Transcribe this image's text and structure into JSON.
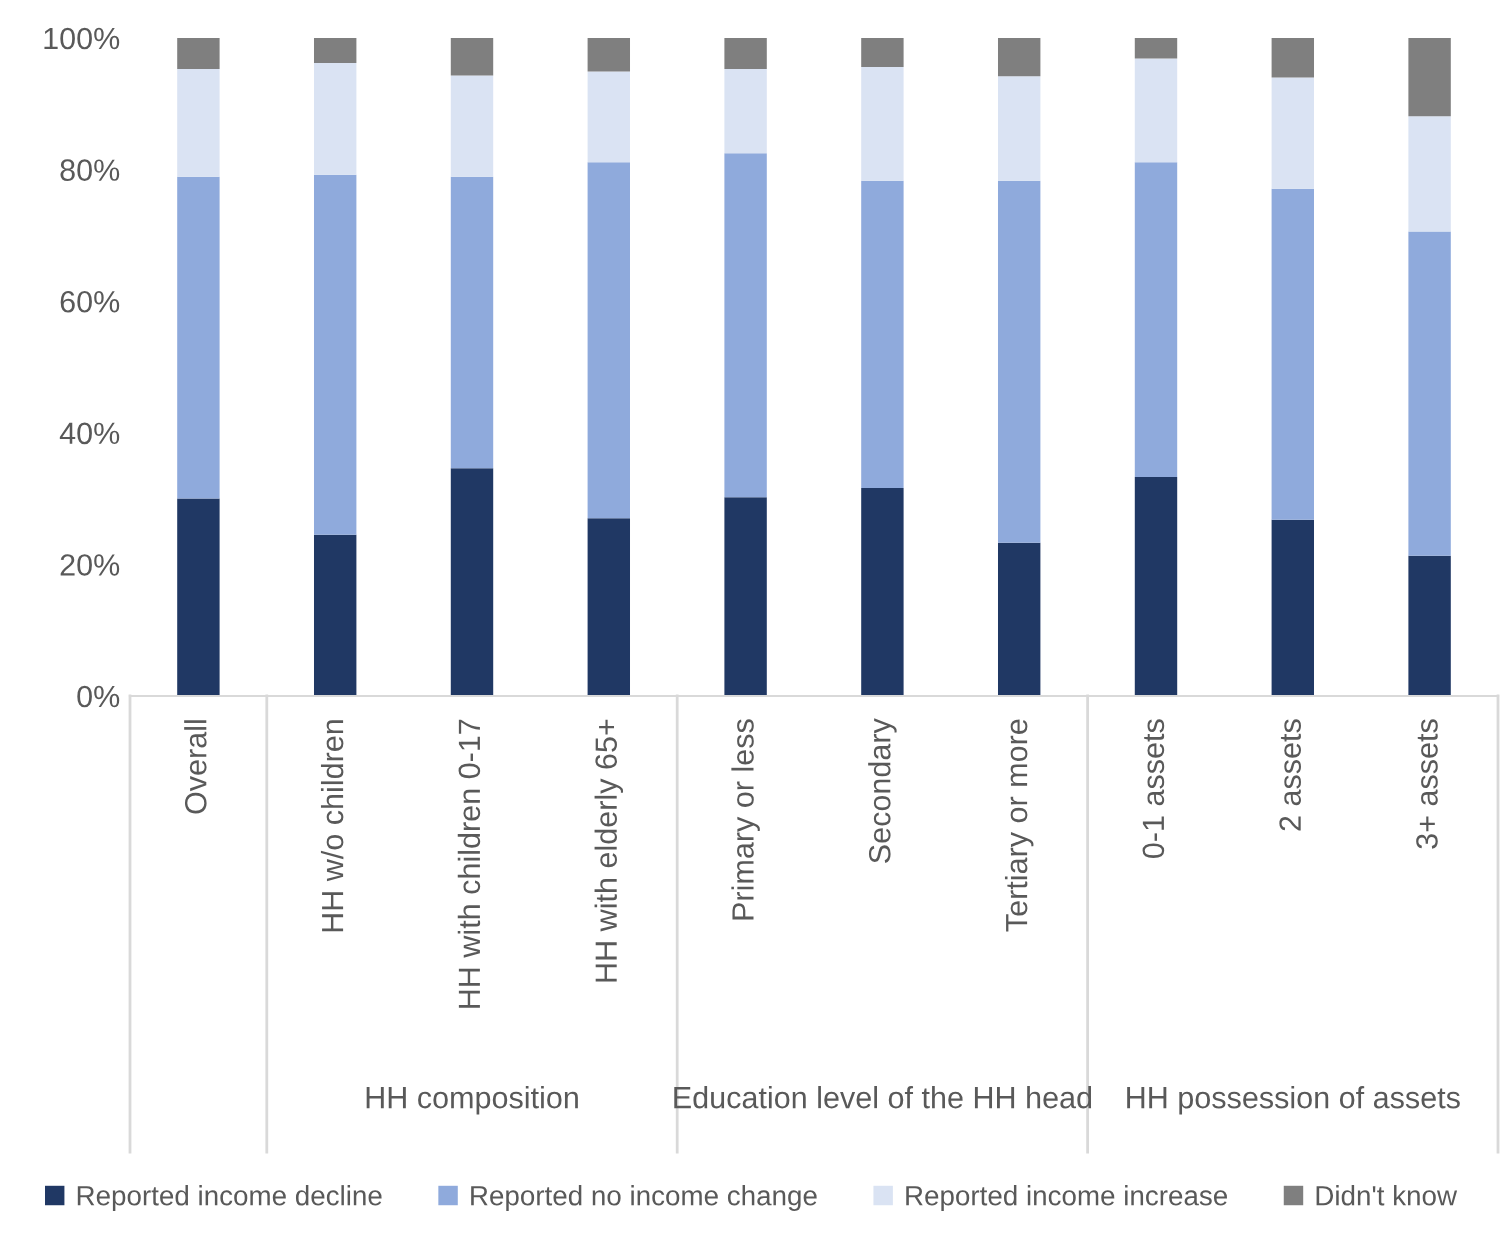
{
  "chart_data": {
    "type": "bar",
    "stacked": true,
    "categories": [
      "Overall",
      "HH w/o children",
      "HH with children 0-17",
      "HH with elderly 65+",
      "Primary or less",
      "Secondary",
      "Tertiary or more",
      "0-1 assets",
      "2 assets",
      "3+ assets"
    ],
    "series": [
      {
        "name": "Reported income decline",
        "color": "#203864",
        "values": [
          30.0,
          24.5,
          34.6,
          27.0,
          30.2,
          31.6,
          23.3,
          33.3,
          26.8,
          21.3
        ]
      },
      {
        "name": "Reported no income change",
        "color": "#8faadc",
        "values": [
          48.9,
          54.7,
          44.3,
          54.1,
          52.3,
          46.7,
          55.0,
          47.8,
          50.3,
          49.3
        ]
      },
      {
        "name": "Reported income increase",
        "color": "#dae3f3",
        "values": [
          16.4,
          17.0,
          15.4,
          13.8,
          12.8,
          17.3,
          15.9,
          15.8,
          16.9,
          17.5
        ]
      },
      {
        "name": "Didn't know",
        "color": "#7f7f7f",
        "values": [
          4.7,
          3.8,
          5.7,
          5.1,
          4.7,
          4.4,
          5.8,
          3.1,
          6.0,
          11.9
        ]
      }
    ],
    "ylim": [
      0,
      100
    ],
    "yticks": [
      {
        "value": 0,
        "label": "0%"
      },
      {
        "value": 20,
        "label": "20%"
      },
      {
        "value": 40,
        "label": "40%"
      },
      {
        "value": 60,
        "label": "60%"
      },
      {
        "value": 80,
        "label": "80%"
      },
      {
        "value": 100,
        "label": "100%"
      }
    ],
    "annotations": [
      "HH composition",
      "Education level of the HH head",
      "HH possession of assets"
    ],
    "grid": false,
    "legend": "bottom"
  }
}
